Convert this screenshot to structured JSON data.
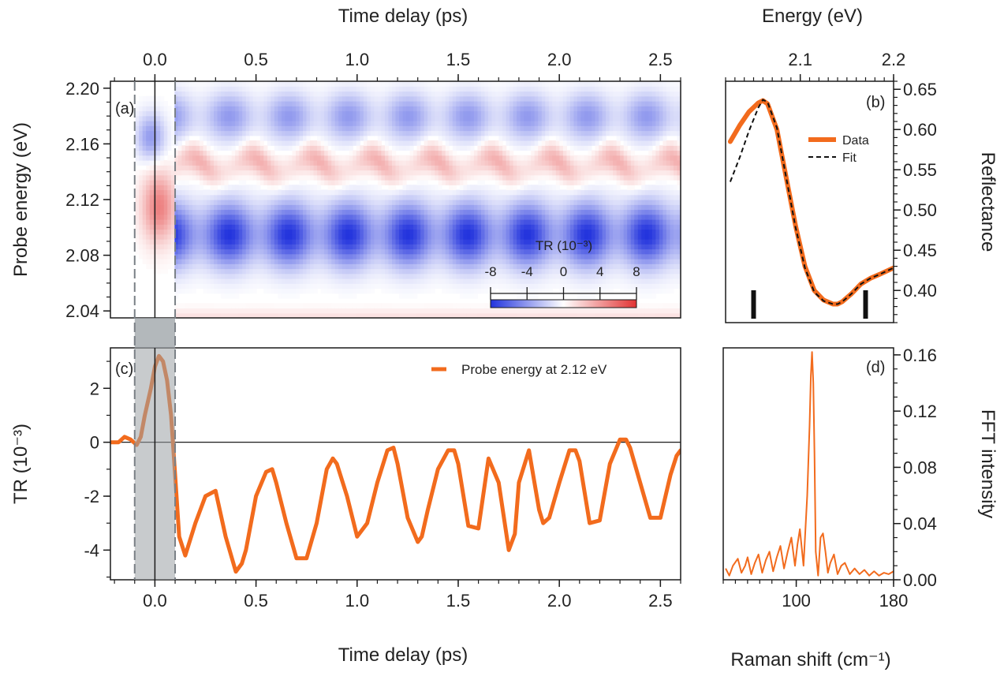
{
  "colors": {
    "series": "#f26b1d",
    "axis": "#1a1a1a",
    "negative": "#2233dd",
    "positive": "#e23333",
    "shade": "#9aa0a4"
  },
  "chart_data": [
    {
      "panel_label": "(a)",
      "type": "heatmap",
      "xlabel_top": "Time delay (ps)",
      "ylabel": "Probe energy (eV)",
      "xlim": [
        -0.22,
        2.6
      ],
      "ylim": [
        2.035,
        2.205
      ],
      "x_ticks": [
        "0.0",
        "0.5",
        "1.0",
        "1.5",
        "2.0",
        "2.5"
      ],
      "y_ticks": [
        "2.04",
        "2.08",
        "2.12",
        "2.16",
        "2.20"
      ],
      "colorbar": {
        "title": "TR (10⁻³)",
        "ticks": [
          "-8",
          "-4",
          "0",
          "4",
          "8"
        ],
        "range": [
          -8,
          8
        ],
        "colors": [
          "blue",
          "white",
          "red"
        ]
      },
      "oscillation_period_ps": 0.295,
      "blue_band_center_eV": 2.095,
      "red_band_center_eV": 2.145,
      "upper_blue_band_center_eV": 2.18,
      "shaded_window_ps": [
        -0.1,
        0.1
      ]
    },
    {
      "panel_label": "(b)",
      "type": "line",
      "xlabel_top": "Energy (eV)",
      "ylabel": "Reflectance",
      "xlim": [
        2.02,
        2.2
      ],
      "ylim": [
        0.36,
        0.66
      ],
      "x_ticks": [
        "2.1",
        "2.2"
      ],
      "y_ticks": [
        "0.40",
        "0.45",
        "0.50",
        "0.55",
        "0.60",
        "0.65"
      ],
      "legend": [
        "Data",
        "Fit"
      ],
      "series": [
        {
          "name": "Data",
          "x": [
            2.025,
            2.035,
            2.045,
            2.055,
            2.06,
            2.065,
            2.075,
            2.085,
            2.095,
            2.105,
            2.115,
            2.125,
            2.135,
            2.14,
            2.145,
            2.155,
            2.165,
            2.175,
            2.185,
            2.2
          ],
          "y": [
            0.585,
            0.605,
            0.622,
            0.633,
            0.636,
            0.632,
            0.6,
            0.54,
            0.48,
            0.43,
            0.4,
            0.388,
            0.383,
            0.383,
            0.386,
            0.396,
            0.408,
            0.415,
            0.42,
            0.428
          ]
        },
        {
          "name": "Fit",
          "x": [
            2.025,
            2.035,
            2.045,
            2.055,
            2.06,
            2.065,
            2.075,
            2.085,
            2.095,
            2.105,
            2.115,
            2.125,
            2.135,
            2.14,
            2.145,
            2.155,
            2.165,
            2.175,
            2.185,
            2.2
          ],
          "y": [
            0.535,
            0.565,
            0.598,
            0.627,
            0.637,
            0.634,
            0.602,
            0.54,
            0.478,
            0.428,
            0.398,
            0.387,
            0.383,
            0.383,
            0.386,
            0.396,
            0.408,
            0.415,
            0.42,
            0.428
          ]
        }
      ],
      "markers_eV": [
        2.05,
        2.17
      ]
    },
    {
      "panel_label": "(c)",
      "type": "line",
      "xlabel": "Time delay (ps)",
      "ylabel": "TR (10⁻³)",
      "xlim": [
        -0.22,
        2.6
      ],
      "ylim": [
        -5.1,
        3.5
      ],
      "x_ticks": [
        "0.0",
        "0.5",
        "1.0",
        "1.5",
        "2.0",
        "2.5"
      ],
      "y_ticks": [
        "-4",
        "-2",
        "0",
        "2"
      ],
      "legend": [
        "Probe energy at 2.12 eV"
      ],
      "series": [
        {
          "name": "Probe energy at 2.12 eV",
          "x": [
            -0.25,
            -0.2,
            -0.18,
            -0.15,
            -0.12,
            -0.09,
            -0.07,
            -0.05,
            -0.02,
            0.0,
            0.02,
            0.04,
            0.06,
            0.08,
            0.1,
            0.12,
            0.15,
            0.2,
            0.25,
            0.3,
            0.35,
            0.4,
            0.43,
            0.45,
            0.5,
            0.55,
            0.58,
            0.6,
            0.65,
            0.7,
            0.75,
            0.8,
            0.85,
            0.88,
            0.9,
            0.95,
            1.0,
            1.05,
            1.1,
            1.15,
            1.18,
            1.2,
            1.25,
            1.3,
            1.32,
            1.35,
            1.4,
            1.45,
            1.48,
            1.5,
            1.55,
            1.6,
            1.65,
            1.7,
            1.75,
            1.78,
            1.8,
            1.85,
            1.9,
            1.92,
            1.95,
            2.0,
            2.05,
            2.08,
            2.1,
            2.15,
            2.2,
            2.25,
            2.3,
            2.33,
            2.35,
            2.4,
            2.45,
            2.5,
            2.55,
            2.58,
            2.6
          ],
          "y": [
            0.0,
            0.0,
            0.0,
            0.2,
            0.1,
            -0.1,
            0.2,
            1.0,
            2.0,
            2.8,
            3.2,
            3.0,
            2.3,
            1.0,
            -1.2,
            -3.5,
            -4.2,
            -3.0,
            -2.0,
            -1.8,
            -3.5,
            -4.8,
            -4.5,
            -4.0,
            -2.0,
            -1.1,
            -1.0,
            -1.5,
            -3.0,
            -4.3,
            -4.3,
            -3.0,
            -1.0,
            -0.6,
            -0.8,
            -2.0,
            -3.5,
            -3.0,
            -1.5,
            -0.3,
            -0.2,
            -0.8,
            -2.8,
            -3.7,
            -3.5,
            -2.5,
            -1.0,
            -0.3,
            -0.3,
            -0.8,
            -3.1,
            -3.2,
            -0.6,
            -1.5,
            -4.0,
            -3.4,
            -1.5,
            -0.3,
            -2.5,
            -3.0,
            -2.8,
            -1.5,
            -0.3,
            -0.3,
            -0.7,
            -3.0,
            -2.9,
            -0.8,
            0.1,
            0.1,
            -0.2,
            -1.5,
            -2.8,
            -2.8,
            -1.2,
            -0.5,
            -0.3
          ]
        }
      ],
      "shaded_window_ps": [
        -0.1,
        0.1
      ]
    },
    {
      "panel_label": "(d)",
      "type": "line",
      "xlabel": "Raman shift (cm⁻¹)",
      "ylabel": "FFT intensity",
      "xlim": [
        40,
        180
      ],
      "ylim": [
        0.0,
        0.165
      ],
      "x_ticks": [
        "100",
        "180"
      ],
      "y_ticks": [
        "0.00",
        "0.04",
        "0.08",
        "0.12",
        "0.16"
      ],
      "series": [
        {
          "name": "FFT",
          "x": [
            42,
            45,
            48,
            52,
            55,
            58,
            60,
            63,
            66,
            69,
            72,
            75,
            78,
            81,
            84,
            87,
            90,
            93,
            96,
            99,
            101,
            103,
            106,
            109,
            111,
            112,
            113,
            114,
            115,
            116,
            118,
            120,
            122,
            124,
            126,
            128,
            131,
            134,
            137,
            140,
            144,
            148,
            152,
            156,
            160,
            164,
            168,
            172,
            176,
            180
          ],
          "y": [
            0.008,
            0.003,
            0.01,
            0.015,
            0.005,
            0.01,
            0.016,
            0.004,
            0.012,
            0.018,
            0.005,
            0.014,
            0.02,
            0.006,
            0.016,
            0.024,
            0.008,
            0.02,
            0.03,
            0.01,
            0.025,
            0.036,
            0.01,
            0.06,
            0.11,
            0.145,
            0.162,
            0.14,
            0.09,
            0.02,
            0.003,
            0.03,
            0.033,
            0.02,
            0.005,
            0.012,
            0.018,
            0.004,
            0.01,
            0.012,
            0.004,
            0.008,
            0.004,
            0.007,
            0.003,
            0.006,
            0.003,
            0.005,
            0.004,
            0.006
          ]
        }
      ]
    }
  ]
}
